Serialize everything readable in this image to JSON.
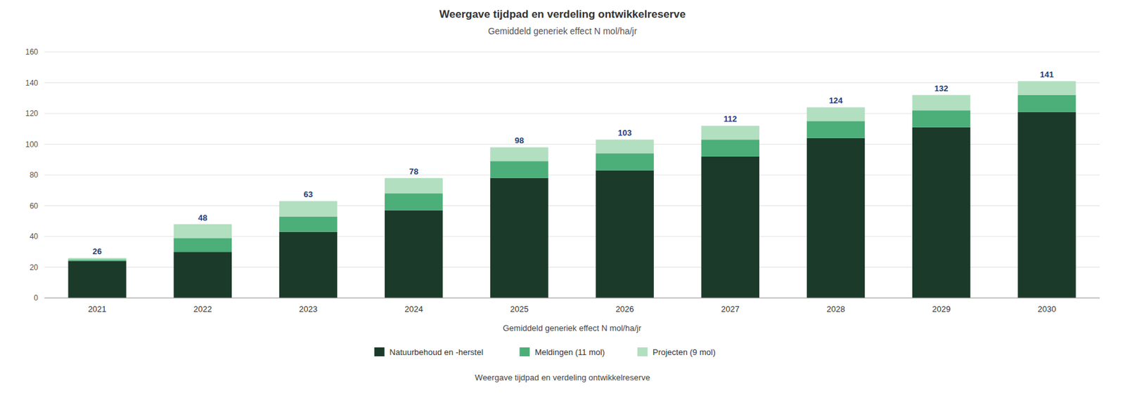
{
  "chart_data": {
    "type": "bar",
    "stacked": true,
    "title": "Weergave tijdpad en verdeling ontwikkelreserve",
    "subtitle": "Gemiddeld generiek effect N mol/ha/jr",
    "xlabel": "Gemiddeld generiek effect N mol/ha/jr",
    "annotations": [
      "Weergave tijdpad en verdeling ontwikkelreserve"
    ],
    "categories": [
      "2021",
      "2022",
      "2023",
      "2024",
      "2025",
      "2026",
      "2027",
      "2028",
      "2029",
      "2030"
    ],
    "series": [
      {
        "name": "Natuurbehoud en -herstel",
        "color": "#1b3a2a",
        "values": [
          24,
          30,
          43,
          57,
          78,
          83,
          92,
          104,
          111,
          121
        ]
      },
      {
        "name": "Meldingen (11 mol)",
        "color": "#4cae78",
        "values": [
          1,
          9,
          10,
          11,
          11,
          11,
          11,
          11,
          11,
          11
        ]
      },
      {
        "name": "Projecten (9 mol)",
        "color": "#b2dfc0",
        "values": [
          1,
          9,
          10,
          10,
          9,
          9,
          9,
          9,
          10,
          9
        ]
      }
    ],
    "totals": [
      26,
      48,
      63,
      78,
      98,
      103,
      112,
      124,
      132,
      141
    ],
    "ylim": [
      0,
      160
    ],
    "yticks": [
      0,
      20,
      40,
      60,
      80,
      100,
      120,
      140,
      160
    ],
    "grid": true,
    "legend": "bottom"
  }
}
